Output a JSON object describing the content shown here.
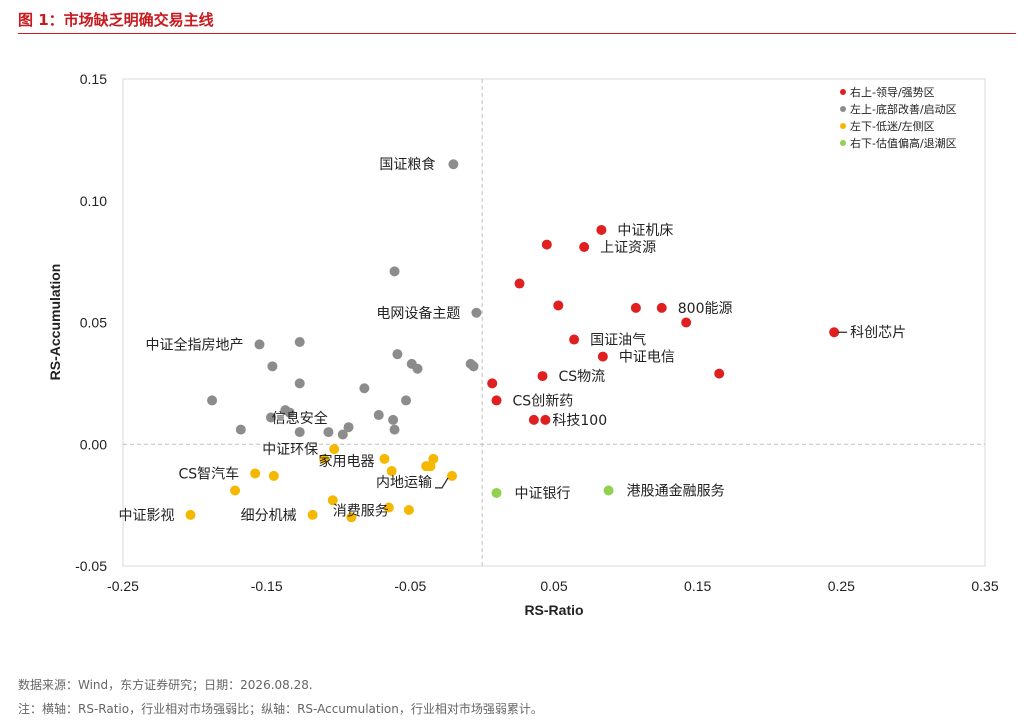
{
  "title": "图 1：市场缺乏明确交易主线",
  "source_note": "数据来源：Wind，东方证券研究；日期：2026.08.28.",
  "axis_note": "注：横轴：RS-Ratio，行业相对市场强弱比；纵轴：RS-Accumulation，行业相对市场强弱累计。",
  "chart_data": {
    "type": "scatter",
    "xlabel": "RS-Ratio",
    "ylabel": "RS-Accumulation",
    "xlim": [
      -0.25,
      0.35
    ],
    "ylim": [
      -0.05,
      0.15
    ],
    "xticks": [
      -0.25,
      -0.15,
      -0.05,
      0.05,
      0.15,
      0.25,
      0.35
    ],
    "xtick_labels": [
      "-0.25",
      "-0.15",
      "-0.05",
      "0.05",
      "0.15",
      "0.25",
      "0.35"
    ],
    "yticks": [
      -0.05,
      0.0,
      0.05,
      0.1,
      0.15
    ],
    "ytick_labels": [
      "-0.05",
      "0.00",
      "0.05",
      "0.10",
      "0.15"
    ],
    "reference_lines": {
      "x": 0,
      "y": 0,
      "style": "dashed"
    },
    "legend_placement": "top-right",
    "series": [
      {
        "name": "右上-领导/强势区",
        "color": "#e02020",
        "points": [
          {
            "x": 0.083,
            "y": 0.088,
            "label": "中证机床"
          },
          {
            "x": 0.045,
            "y": 0.082,
            "label": ""
          },
          {
            "x": 0.071,
            "y": 0.081,
            "label": "上证资源"
          },
          {
            "x": 0.026,
            "y": 0.066,
            "label": ""
          },
          {
            "x": 0.053,
            "y": 0.057,
            "label": ""
          },
          {
            "x": 0.107,
            "y": 0.056,
            "label": ""
          },
          {
            "x": 0.125,
            "y": 0.056,
            "label": "800能源"
          },
          {
            "x": 0.142,
            "y": 0.05,
            "label": ""
          },
          {
            "x": 0.245,
            "y": 0.046,
            "label": "科创芯片"
          },
          {
            "x": 0.064,
            "y": 0.043,
            "label": "国证油气"
          },
          {
            "x": 0.084,
            "y": 0.036,
            "label": "中证电信"
          },
          {
            "x": 0.165,
            "y": 0.029,
            "label": ""
          },
          {
            "x": 0.042,
            "y": 0.028,
            "label": "CS物流"
          },
          {
            "x": 0.007,
            "y": 0.025,
            "label": ""
          },
          {
            "x": 0.01,
            "y": 0.018,
            "label": "CS创新药"
          },
          {
            "x": 0.036,
            "y": 0.01,
            "label": ""
          },
          {
            "x": 0.044,
            "y": 0.01,
            "label": "科技100"
          }
        ]
      },
      {
        "name": "左上-底部改善/启动区",
        "color": "#8c8c8c",
        "points": [
          {
            "x": -0.02,
            "y": 0.115,
            "label": "国证粮食"
          },
          {
            "x": -0.061,
            "y": 0.071,
            "label": ""
          },
          {
            "x": -0.004,
            "y": 0.054,
            "label": "电网设备主题"
          },
          {
            "x": -0.155,
            "y": 0.041,
            "label": "中证全指房地产"
          },
          {
            "x": -0.127,
            "y": 0.042,
            "label": ""
          },
          {
            "x": -0.059,
            "y": 0.037,
            "label": ""
          },
          {
            "x": -0.049,
            "y": 0.033,
            "label": ""
          },
          {
            "x": -0.008,
            "y": 0.033,
            "label": ""
          },
          {
            "x": -0.006,
            "y": 0.032,
            "label": ""
          },
          {
            "x": -0.045,
            "y": 0.031,
            "label": ""
          },
          {
            "x": -0.146,
            "y": 0.032,
            "label": ""
          },
          {
            "x": -0.127,
            "y": 0.025,
            "label": ""
          },
          {
            "x": -0.082,
            "y": 0.023,
            "label": ""
          },
          {
            "x": -0.188,
            "y": 0.018,
            "label": ""
          },
          {
            "x": -0.053,
            "y": 0.018,
            "label": ""
          },
          {
            "x": -0.137,
            "y": 0.014,
            "label": ""
          },
          {
            "x": -0.134,
            "y": 0.013,
            "label": ""
          },
          {
            "x": -0.147,
            "y": 0.011,
            "label": ""
          },
          {
            "x": -0.072,
            "y": 0.012,
            "label": ""
          },
          {
            "x": -0.062,
            "y": 0.01,
            "label": ""
          },
          {
            "x": -0.168,
            "y": 0.006,
            "label": ""
          },
          {
            "x": -0.093,
            "y": 0.007,
            "label": ""
          },
          {
            "x": -0.061,
            "y": 0.006,
            "label": ""
          },
          {
            "x": -0.097,
            "y": 0.004,
            "label": ""
          },
          {
            "x": -0.127,
            "y": 0.005,
            "label": "信息安全"
          },
          {
            "x": -0.107,
            "y": 0.005,
            "label": ""
          }
        ]
      },
      {
        "name": "左下-低迷/左侧区",
        "color": "#f5b800",
        "points": [
          {
            "x": -0.103,
            "y": -0.002,
            "label": "中证环保"
          },
          {
            "x": -0.11,
            "y": -0.006,
            "label": ""
          },
          {
            "x": -0.068,
            "y": -0.006,
            "label": "家用电器"
          },
          {
            "x": -0.034,
            "y": -0.006,
            "label": ""
          },
          {
            "x": -0.039,
            "y": -0.009,
            "label": ""
          },
          {
            "x": -0.036,
            "y": -0.009,
            "label": ""
          },
          {
            "x": -0.063,
            "y": -0.011,
            "label": ""
          },
          {
            "x": -0.021,
            "y": -0.013,
            "label": "内地运输"
          },
          {
            "x": -0.158,
            "y": -0.012,
            "label": "CS智汽车"
          },
          {
            "x": -0.145,
            "y": -0.013,
            "label": ""
          },
          {
            "x": -0.172,
            "y": -0.019,
            "label": ""
          },
          {
            "x": -0.104,
            "y": -0.023,
            "label": ""
          },
          {
            "x": -0.065,
            "y": -0.026,
            "label": "消费服务"
          },
          {
            "x": -0.051,
            "y": -0.027,
            "label": ""
          },
          {
            "x": -0.118,
            "y": -0.029,
            "label": "细分机械"
          },
          {
            "x": -0.091,
            "y": -0.03,
            "label": ""
          },
          {
            "x": -0.203,
            "y": -0.029,
            "label": "中证影视"
          }
        ]
      },
      {
        "name": "右下-估值偏高/退潮区",
        "color": "#92d050",
        "points": [
          {
            "x": 0.01,
            "y": -0.02,
            "label": "中证银行"
          },
          {
            "x": 0.088,
            "y": -0.019,
            "label": "港股通金融服务"
          }
        ]
      }
    ]
  }
}
